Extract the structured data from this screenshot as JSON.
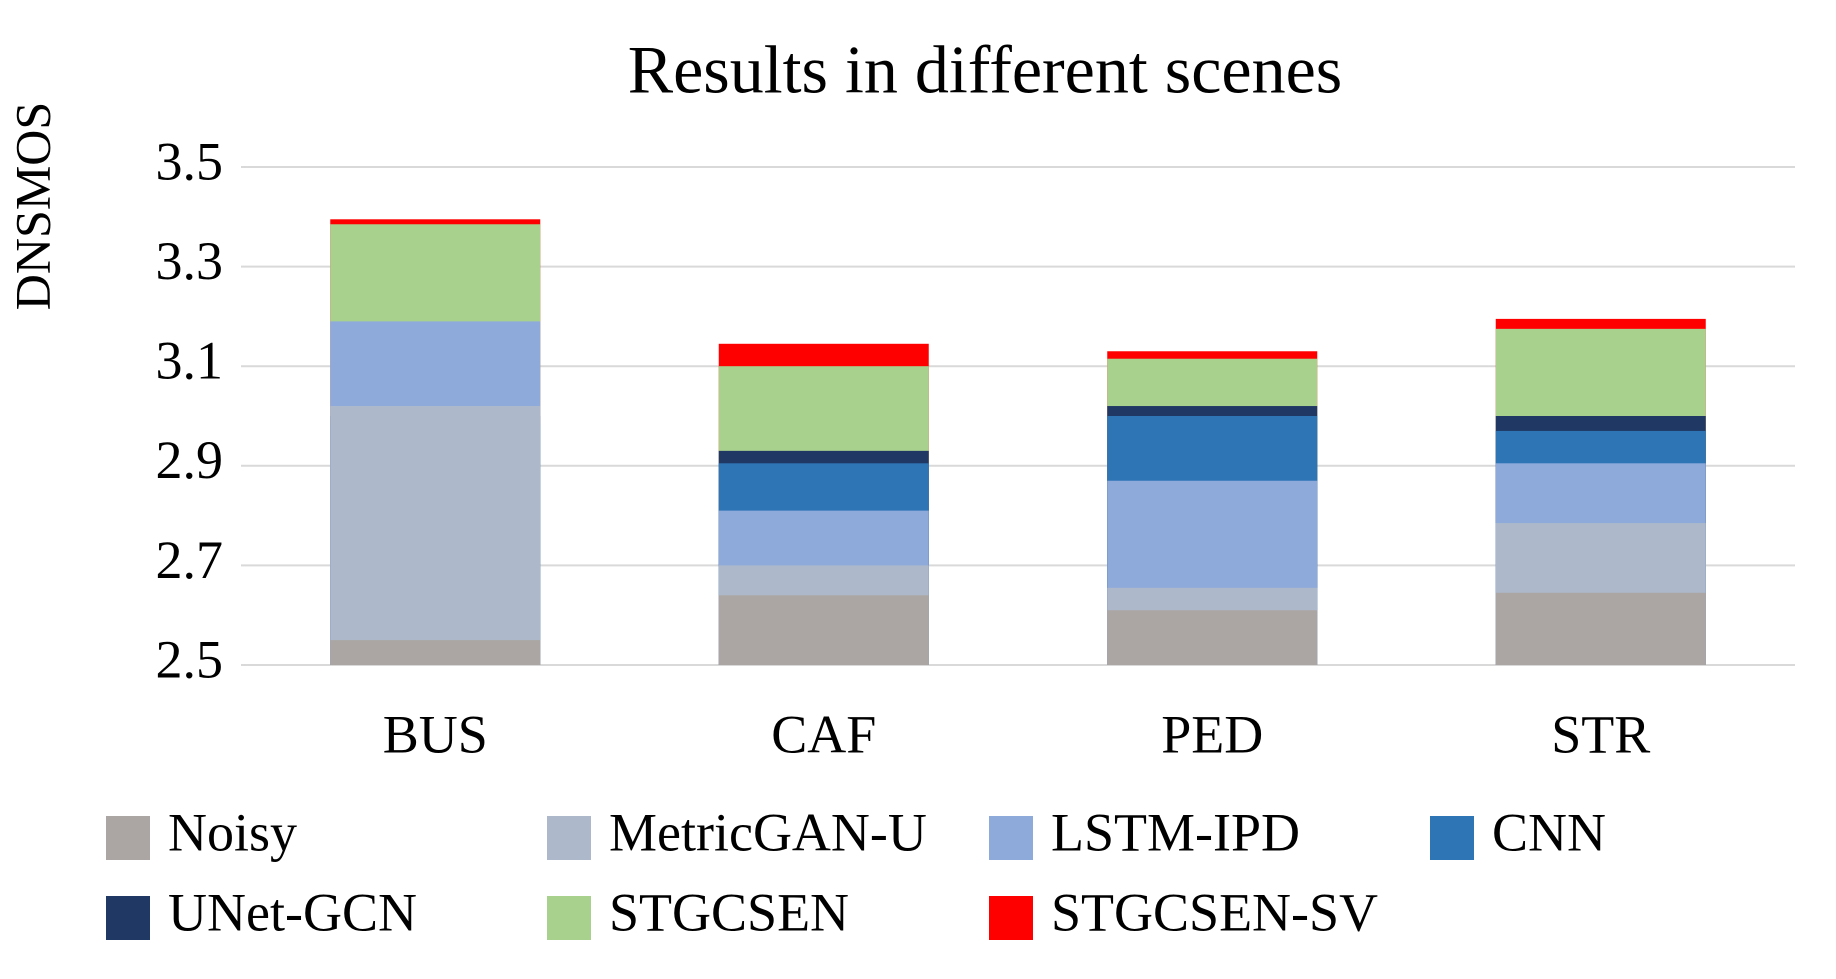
{
  "chart_data": {
    "type": "overlapping-bar",
    "title": "Results in different scenes",
    "y_label": "DNSMOS",
    "categories": [
      "BUS",
      "CAF",
      "PED",
      "STR"
    ],
    "series": [
      {
        "name": "Noisy",
        "color": "#aba6a4",
        "values": [
          2.55,
          2.64,
          2.61,
          2.645
        ]
      },
      {
        "name": "MetricGAN-U",
        "color": "#adb9ca",
        "values": [
          3.02,
          2.7,
          2.655,
          2.785
        ]
      },
      {
        "name": "LSTM-IPD",
        "color": "#8eaadb",
        "values": [
          3.19,
          2.81,
          2.87,
          2.905
        ]
      },
      {
        "name": "CNN",
        "color": "#2e75b6",
        "values": [
          2.98,
          2.905,
          3.0,
          2.97
        ]
      },
      {
        "name": "UNet-GCN",
        "color": "#203864",
        "values": [
          3.0,
          2.93,
          3.02,
          3.0
        ]
      },
      {
        "name": "STGCSEN",
        "color": "#a9d18e",
        "values": [
          3.385,
          3.1,
          3.115,
          3.175
        ]
      },
      {
        "name": "STGCSEN-SV",
        "color": "#ff0000",
        "values": [
          3.395,
          3.145,
          3.13,
          3.195
        ]
      }
    ],
    "ylim": [
      2.5,
      3.5
    ],
    "yticks": [
      2.5,
      2.7,
      2.9,
      3.1,
      3.3,
      3.5
    ],
    "grid": true,
    "legend": "bottom"
  }
}
